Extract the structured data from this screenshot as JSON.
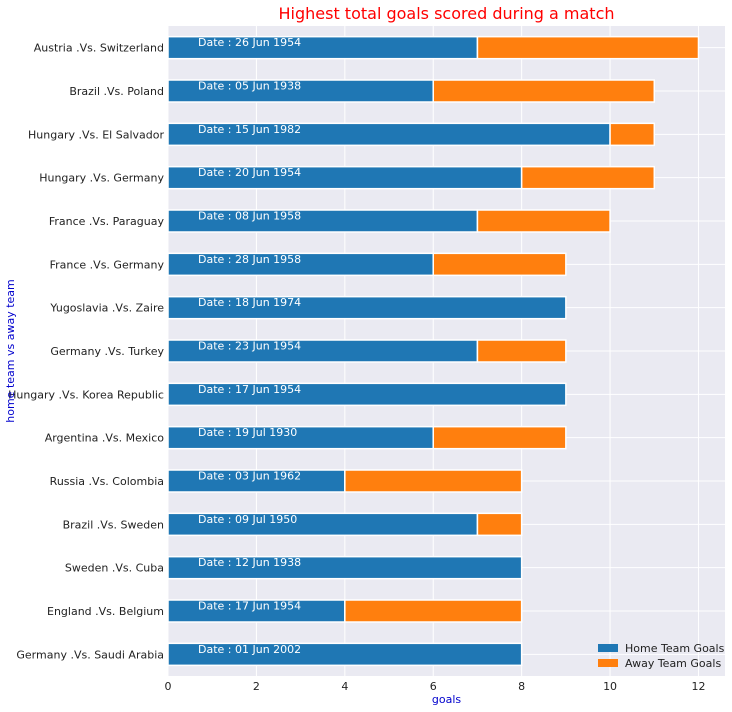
{
  "chart_data": {
    "type": "bar",
    "orientation": "horizontal",
    "stacked": true,
    "title": "Highest total goals scored during a match",
    "xlabel": "goals",
    "ylabel": "home team vs away team",
    "xlim": [
      0,
      12.6
    ],
    "xticks": [
      0,
      2,
      4,
      6,
      8,
      10,
      12
    ],
    "grid": true,
    "legend_position": "bottom-right",
    "colors": {
      "title": "#ff0000",
      "axis_label": "#0000cd",
      "background": "#eaeaf2",
      "grid": "#ffffff"
    },
    "categories": [
      "Austria .Vs. Switzerland",
      "Brazil .Vs. Poland",
      "Hungary .Vs. El Salvador",
      "Hungary .Vs. Germany",
      "France .Vs. Paraguay",
      "France .Vs. Germany",
      "Yugoslavia .Vs. Zaire",
      "Germany .Vs. Turkey",
      "Hungary .Vs. Korea Republic",
      "Argentina .Vs. Mexico",
      "Russia .Vs. Colombia",
      "Brazil .Vs. Sweden",
      "Sweden .Vs. Cuba",
      "England .Vs. Belgium",
      "Germany .Vs. Saudi Arabia"
    ],
    "dates": [
      "Date  : 26 Jun 1954",
      "Date  : 05 Jun 1938",
      "Date  : 15 Jun 1982",
      "Date  : 20 Jun 1954",
      "Date  : 08 Jun 1958",
      "Date  : 28 Jun 1958",
      "Date  : 18 Jun 1974",
      "Date  : 23 Jun 1954",
      "Date  : 17 Jun 1954",
      "Date  : 19 Jul 1930",
      "Date  : 03 Jun 1962",
      "Date  : 09 Jul 1950",
      "Date  : 12 Jun 1938",
      "Date  : 17 Jun 1954",
      "Date  : 01 Jun 2002"
    ],
    "series": [
      {
        "name": "Home Team Goals",
        "color": "#1f77b4",
        "values": [
          7,
          6,
          10,
          8,
          7,
          6,
          9,
          7,
          9,
          6,
          4,
          7,
          8,
          4,
          8
        ]
      },
      {
        "name": "Away Team Goals",
        "color": "#ff7f0e",
        "values": [
          5,
          5,
          1,
          3,
          3,
          3,
          0,
          2,
          0,
          3,
          4,
          1,
          0,
          4,
          0
        ]
      }
    ]
  }
}
